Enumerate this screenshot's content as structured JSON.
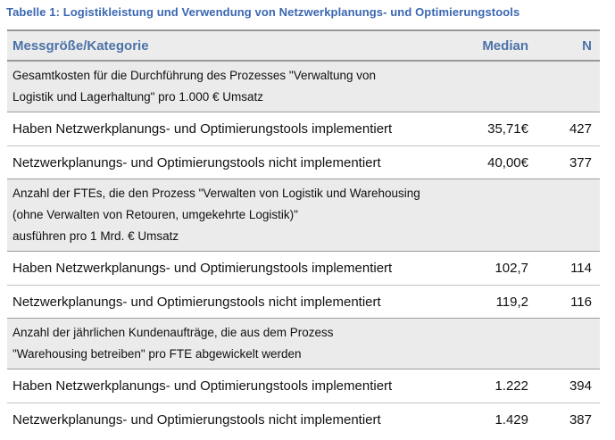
{
  "title": "Tabelle 1: Logistikleistung und Verwendung von Netzwerkplanungs- und Optimierungstools",
  "colors": {
    "title_blue": "#3a67b1",
    "header_blue": "#4c72a7",
    "section_bg": "#ebebeb",
    "thead_bg": "#ececec",
    "border_dark": "#999999",
    "border_mid": "#9c9c9c",
    "border_light": "#c2c2c2"
  },
  "table": {
    "columns": [
      "Messgröße/Kategorie",
      "Median",
      "N"
    ],
    "sections": [
      {
        "header_lines": [
          "Gesamtkosten für die Durchführung des Prozesses \"Verwaltung von",
          "Logistik und Lagerhaltung\" pro 1.000 € Umsatz"
        ],
        "rows": [
          {
            "label": "Haben Netzwerkplanungs- und Optimierungstools implementiert",
            "median": "35,71€",
            "n": "427"
          },
          {
            "label": "Netzwerkplanungs- und Optimierungstools nicht implementiert",
            "median": "40,00€",
            "n": "377"
          }
        ]
      },
      {
        "header_lines": [
          "Anzahl der FTEs, die den Prozess \"Verwalten von Logistik und Warehousing",
          "(ohne Verwalten von Retouren, umgekehrte Logistik)\"",
          "ausführen pro 1 Mrd. € Umsatz"
        ],
        "rows": [
          {
            "label": "Haben Netzwerkplanungs- und Optimierungstools implementiert",
            "median": "102,7",
            "n": "114"
          },
          {
            "label": "Netzwerkplanungs- und Optimierungstools nicht implementiert",
            "median": "119,2",
            "n": "116"
          }
        ]
      },
      {
        "header_lines": [
          "Anzahl der jährlichen Kundenaufträge, die aus dem Prozess",
          "\"Warehousing betreiben\" pro FTE abgewickelt werden"
        ],
        "rows": [
          {
            "label": "Haben Netzwerkplanungs- und Optimierungstools implementiert",
            "median": "1.222",
            "n": "394"
          },
          {
            "label": "Netzwerkplanungs- und Optimierungstools nicht implementiert",
            "median": "1.429",
            "n": "387"
          }
        ]
      }
    ]
  }
}
